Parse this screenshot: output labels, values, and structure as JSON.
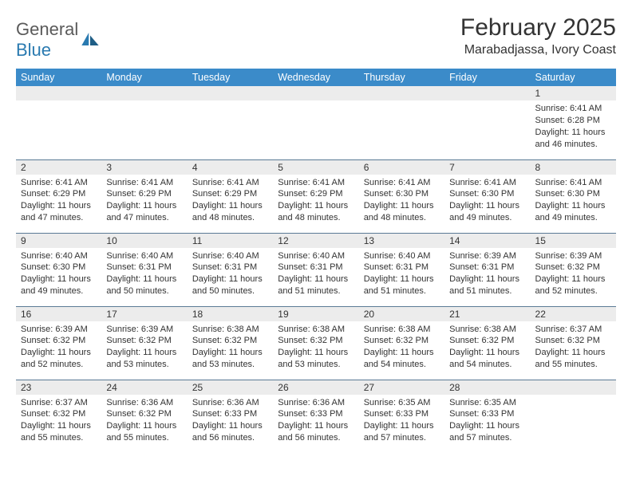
{
  "logo": {
    "text1": "General",
    "text2": "Blue"
  },
  "title": "February 2025",
  "location": "Marabadjassa, Ivory Coast",
  "colors": {
    "header_bg": "#3b8bc9",
    "header_fg": "#ffffff",
    "row_sep": "#5a7a95",
    "daynum_bg": "#ececec",
    "logo_gray": "#5a5a5a",
    "logo_blue": "#2a7ab0"
  },
  "weekdays": [
    "Sunday",
    "Monday",
    "Tuesday",
    "Wednesday",
    "Thursday",
    "Friday",
    "Saturday"
  ],
  "weeks": [
    [
      null,
      null,
      null,
      null,
      null,
      null,
      {
        "n": "1",
        "sr": "6:41 AM",
        "ss": "6:28 PM",
        "dl": "11 hours and 46 minutes."
      }
    ],
    [
      {
        "n": "2",
        "sr": "6:41 AM",
        "ss": "6:29 PM",
        "dl": "11 hours and 47 minutes."
      },
      {
        "n": "3",
        "sr": "6:41 AM",
        "ss": "6:29 PM",
        "dl": "11 hours and 47 minutes."
      },
      {
        "n": "4",
        "sr": "6:41 AM",
        "ss": "6:29 PM",
        "dl": "11 hours and 48 minutes."
      },
      {
        "n": "5",
        "sr": "6:41 AM",
        "ss": "6:29 PM",
        "dl": "11 hours and 48 minutes."
      },
      {
        "n": "6",
        "sr": "6:41 AM",
        "ss": "6:30 PM",
        "dl": "11 hours and 48 minutes."
      },
      {
        "n": "7",
        "sr": "6:41 AM",
        "ss": "6:30 PM",
        "dl": "11 hours and 49 minutes."
      },
      {
        "n": "8",
        "sr": "6:41 AM",
        "ss": "6:30 PM",
        "dl": "11 hours and 49 minutes."
      }
    ],
    [
      {
        "n": "9",
        "sr": "6:40 AM",
        "ss": "6:30 PM",
        "dl": "11 hours and 49 minutes."
      },
      {
        "n": "10",
        "sr": "6:40 AM",
        "ss": "6:31 PM",
        "dl": "11 hours and 50 minutes."
      },
      {
        "n": "11",
        "sr": "6:40 AM",
        "ss": "6:31 PM",
        "dl": "11 hours and 50 minutes."
      },
      {
        "n": "12",
        "sr": "6:40 AM",
        "ss": "6:31 PM",
        "dl": "11 hours and 51 minutes."
      },
      {
        "n": "13",
        "sr": "6:40 AM",
        "ss": "6:31 PM",
        "dl": "11 hours and 51 minutes."
      },
      {
        "n": "14",
        "sr": "6:39 AM",
        "ss": "6:31 PM",
        "dl": "11 hours and 51 minutes."
      },
      {
        "n": "15",
        "sr": "6:39 AM",
        "ss": "6:32 PM",
        "dl": "11 hours and 52 minutes."
      }
    ],
    [
      {
        "n": "16",
        "sr": "6:39 AM",
        "ss": "6:32 PM",
        "dl": "11 hours and 52 minutes."
      },
      {
        "n": "17",
        "sr": "6:39 AM",
        "ss": "6:32 PM",
        "dl": "11 hours and 53 minutes."
      },
      {
        "n": "18",
        "sr": "6:38 AM",
        "ss": "6:32 PM",
        "dl": "11 hours and 53 minutes."
      },
      {
        "n": "19",
        "sr": "6:38 AM",
        "ss": "6:32 PM",
        "dl": "11 hours and 53 minutes."
      },
      {
        "n": "20",
        "sr": "6:38 AM",
        "ss": "6:32 PM",
        "dl": "11 hours and 54 minutes."
      },
      {
        "n": "21",
        "sr": "6:38 AM",
        "ss": "6:32 PM",
        "dl": "11 hours and 54 minutes."
      },
      {
        "n": "22",
        "sr": "6:37 AM",
        "ss": "6:32 PM",
        "dl": "11 hours and 55 minutes."
      }
    ],
    [
      {
        "n": "23",
        "sr": "6:37 AM",
        "ss": "6:32 PM",
        "dl": "11 hours and 55 minutes."
      },
      {
        "n": "24",
        "sr": "6:36 AM",
        "ss": "6:32 PM",
        "dl": "11 hours and 55 minutes."
      },
      {
        "n": "25",
        "sr": "6:36 AM",
        "ss": "6:33 PM",
        "dl": "11 hours and 56 minutes."
      },
      {
        "n": "26",
        "sr": "6:36 AM",
        "ss": "6:33 PM",
        "dl": "11 hours and 56 minutes."
      },
      {
        "n": "27",
        "sr": "6:35 AM",
        "ss": "6:33 PM",
        "dl": "11 hours and 57 minutes."
      },
      {
        "n": "28",
        "sr": "6:35 AM",
        "ss": "6:33 PM",
        "dl": "11 hours and 57 minutes."
      },
      null
    ]
  ],
  "labels": {
    "sunrise": "Sunrise:",
    "sunset": "Sunset:",
    "daylight": "Daylight:"
  }
}
